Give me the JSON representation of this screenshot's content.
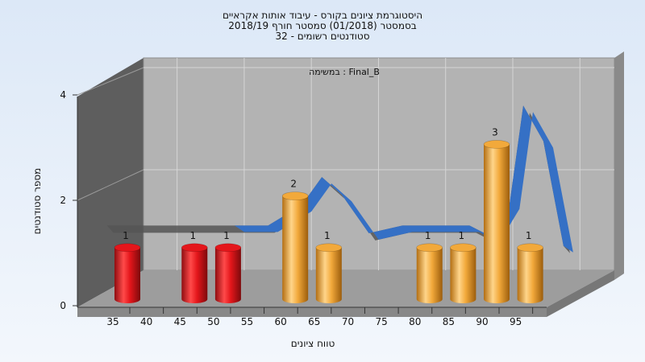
{
  "chart_data": {
    "type": "bar",
    "title_lines": [
      "היסטוגרמת ציונים בקורס - עיבוד אותות אקראיים",
      "בסמסטר (01/2018) סמסטר חורף 2018/19",
      "סטודנטים רשומים - 32"
    ],
    "annotation": "במשימה : Final_B",
    "xlabel": "טווח ציונים",
    "ylabel": "מספר סטודנטים",
    "x_ticks": [
      35,
      40,
      45,
      50,
      55,
      60,
      65,
      70,
      75,
      80,
      85,
      90,
      95
    ],
    "y_ticks": [
      0,
      2,
      4
    ],
    "ylim": [
      0,
      4
    ],
    "bars": [
      {
        "x": 35,
        "value": 1,
        "label": "1",
        "color": "#e4161b"
      },
      {
        "x": 45,
        "value": 1,
        "label": "1",
        "color": "#e4161b"
      },
      {
        "x": 50,
        "value": 1,
        "label": "1",
        "color": "#e4161b"
      },
      {
        "x": 60,
        "value": 2,
        "label": "2",
        "color": "#f2a93b"
      },
      {
        "x": 65,
        "value": 1,
        "label": "1",
        "color": "#f2a93b"
      },
      {
        "x": 80,
        "value": 1,
        "label": "1",
        "color": "#f2a93b"
      },
      {
        "x": 85,
        "value": 1,
        "label": "1",
        "color": "#f2a93b"
      },
      {
        "x": 90,
        "value": 3,
        "label": "3",
        "color": "#f2a93b"
      },
      {
        "x": 95,
        "value": 1,
        "label": "1",
        "color": "#f2a93b"
      }
    ],
    "curve": {
      "x": [
        31,
        35,
        40,
        45,
        50,
        55,
        60,
        63,
        66,
        70,
        75,
        80,
        85,
        88,
        91,
        93,
        96,
        99
      ],
      "y": [
        0.75,
        0.75,
        0.75,
        0.75,
        0.75,
        0.75,
        1.15,
        1.7,
        1.35,
        0.6,
        0.75,
        0.75,
        0.75,
        0.55,
        1.2,
        3.1,
        2.4,
        0.35
      ],
      "color": "#3570c5"
    },
    "grid": true,
    "colors": {
      "fail": "#e4161b",
      "pass": "#f2a93b",
      "curve": "#3570c5"
    }
  }
}
